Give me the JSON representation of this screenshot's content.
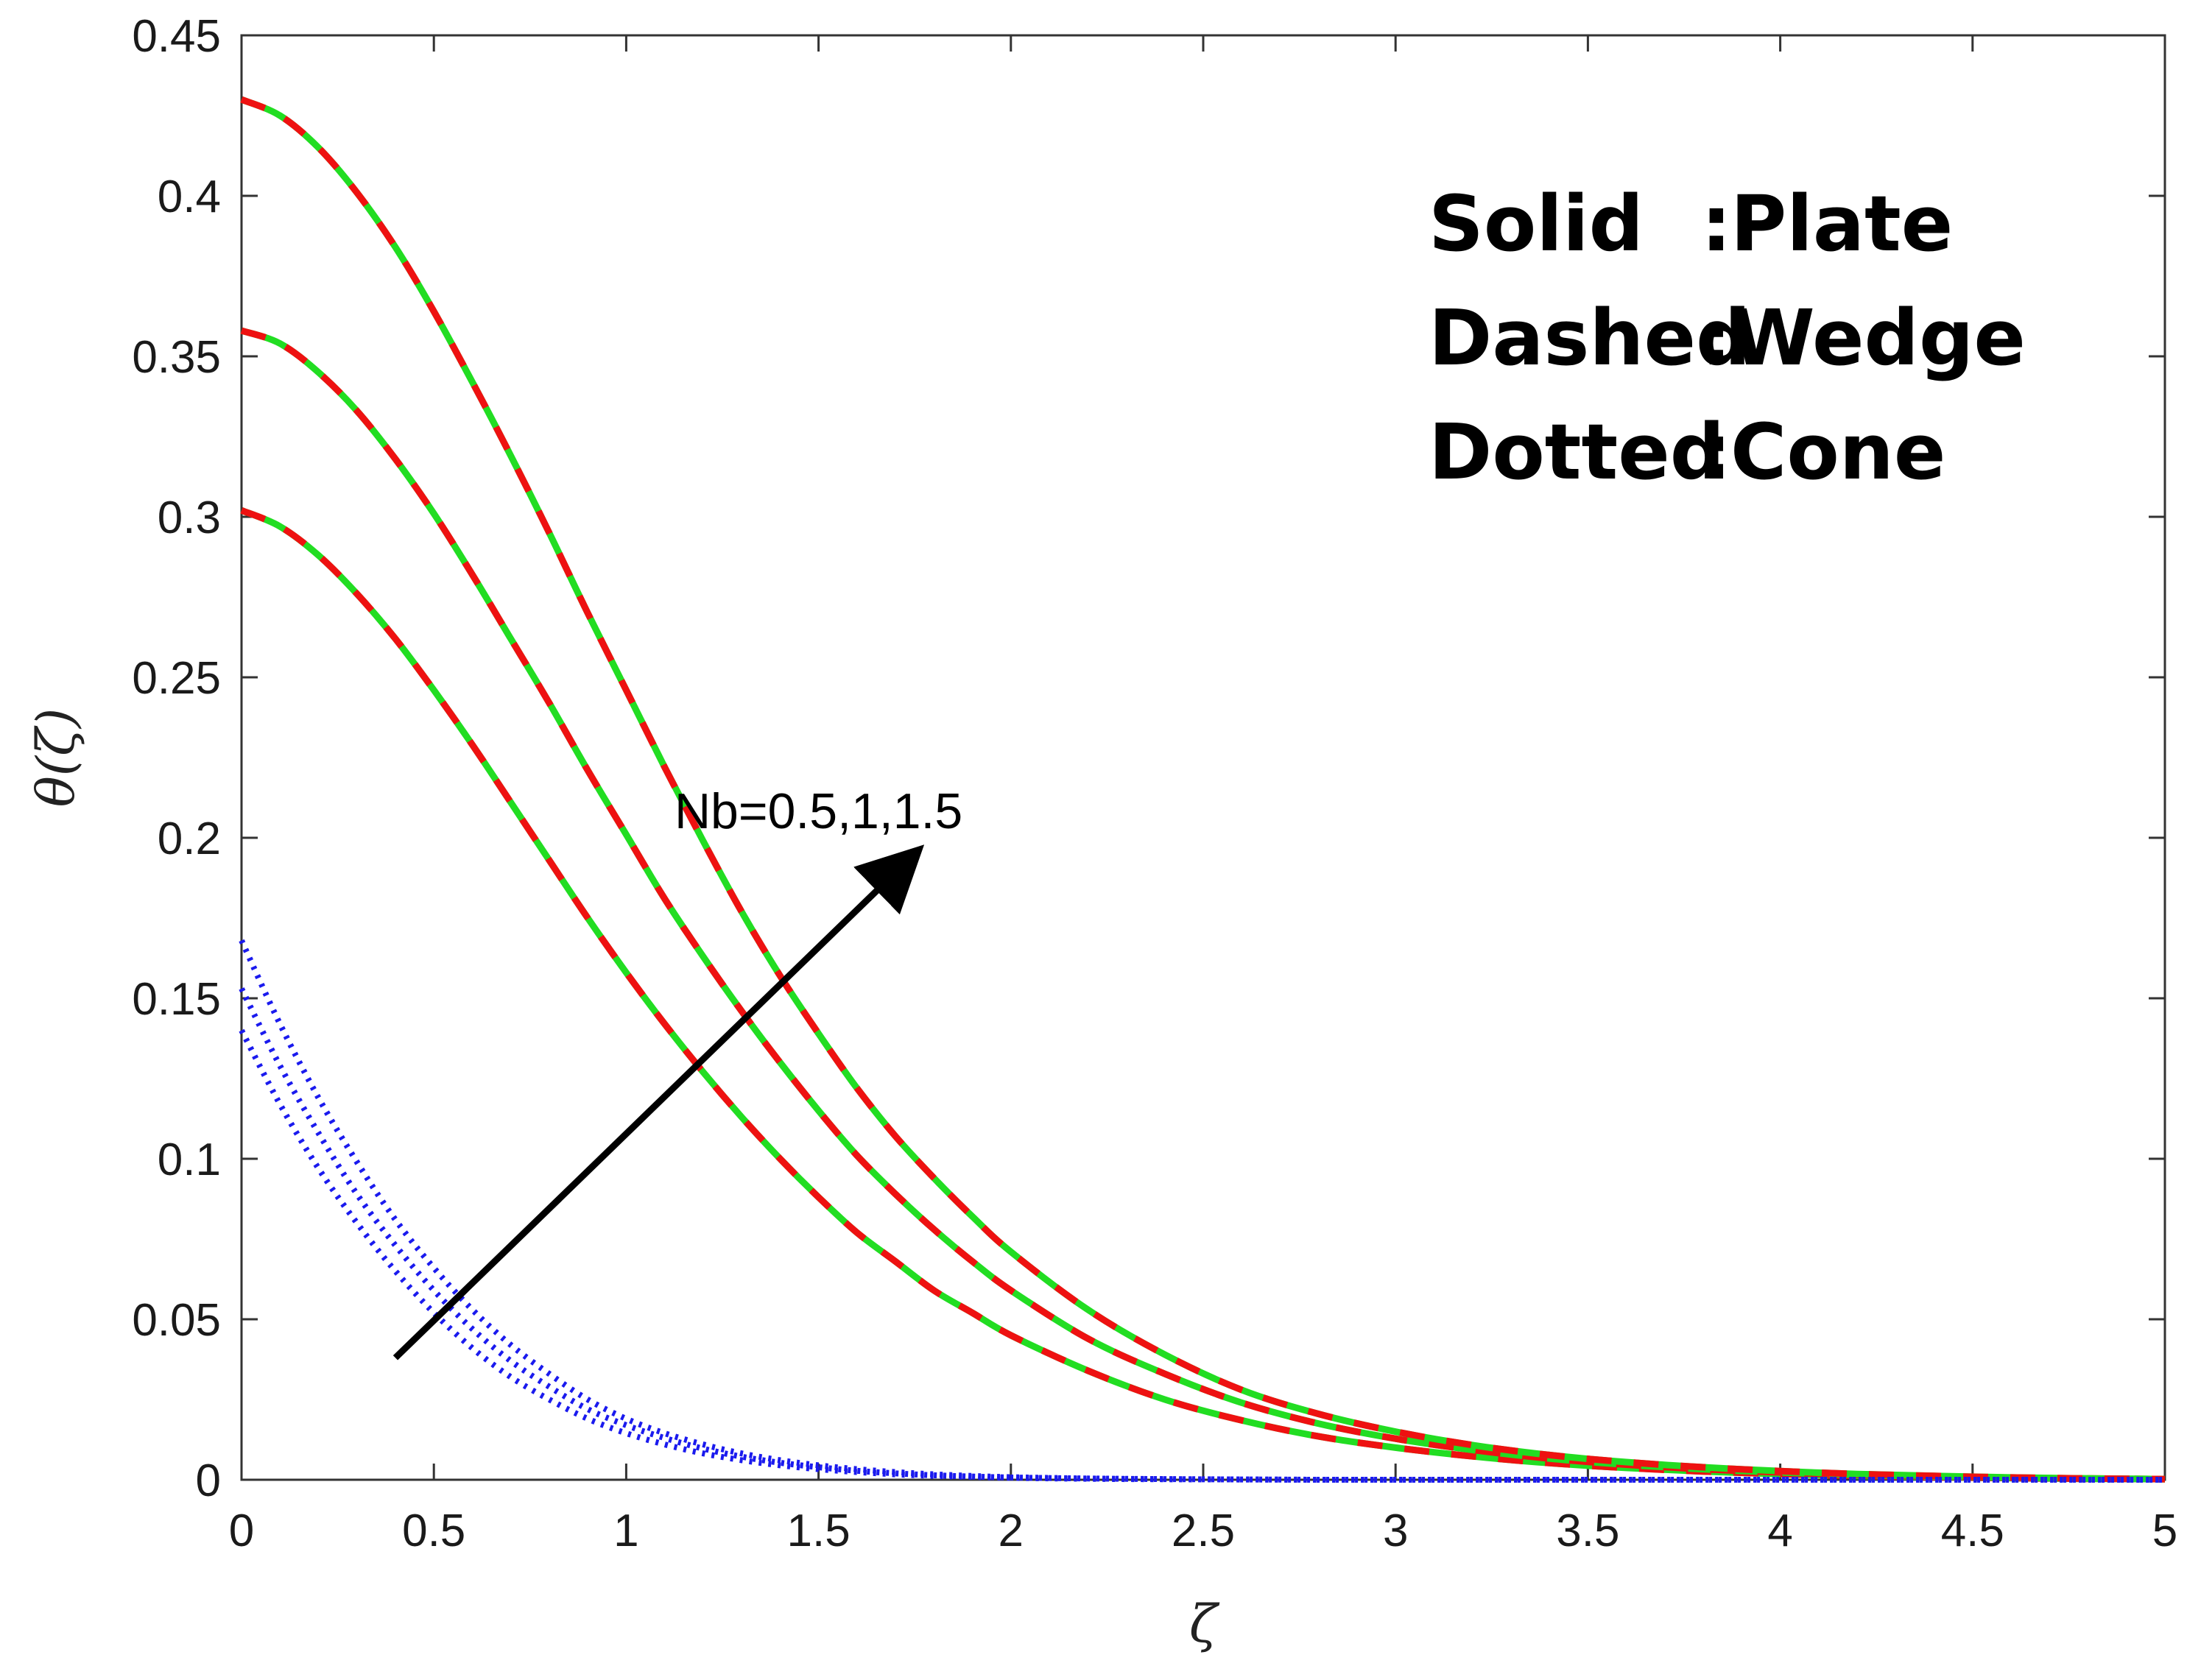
{
  "chart_data": {
    "type": "line",
    "xlabel": "ζ",
    "ylabel": "θ(ζ)",
    "xlim": [
      0,
      5
    ],
    "ylim": [
      0,
      0.45
    ],
    "xticks": [
      "0",
      "0.5",
      "1",
      "1.5",
      "2",
      "2.5",
      "3",
      "3.5",
      "4",
      "4.5",
      "5"
    ],
    "yticks": [
      "0",
      "0.05",
      "0.1",
      "0.15",
      "0.2",
      "0.25",
      "0.3",
      "0.35",
      "0.4",
      "0.45"
    ],
    "grid": false,
    "x": [
      0,
      0.1,
      0.2,
      0.3,
      0.4,
      0.5,
      0.6,
      0.7,
      0.8,
      0.9,
      1.0,
      1.1,
      1.2,
      1.3,
      1.4,
      1.5,
      1.6,
      1.7,
      1.8,
      1.9,
      2.0,
      2.2,
      2.4,
      2.6,
      2.8,
      3.0,
      3.2,
      3.4,
      3.6,
      3.8,
      4.0,
      4.2,
      4.4,
      4.6,
      4.8,
      5.0
    ],
    "series": [
      {
        "group": "plate-wedge",
        "values": [
          0.302,
          0.297,
          0.288,
          0.276,
          0.262,
          0.246,
          0.229,
          0.211,
          0.193,
          0.175,
          0.158,
          0.142,
          0.127,
          0.113,
          0.1,
          0.088,
          0.077,
          0.068,
          0.059,
          0.052,
          0.045,
          0.034,
          0.025,
          0.0185,
          0.0135,
          0.01,
          0.0073,
          0.0052,
          0.0037,
          0.0026,
          0.0018,
          0.0012,
          0.0008,
          0.0005,
          0.0003,
          0.0002
        ],
        "color": "#22dd22",
        "dash_color": "#ee1111"
      },
      {
        "group": "plate-wedge",
        "values": [
          0.358,
          0.354,
          0.345,
          0.333,
          0.318,
          0.301,
          0.282,
          0.262,
          0.242,
          0.221,
          0.201,
          0.181,
          0.163,
          0.146,
          0.13,
          0.115,
          0.101,
          0.089,
          0.078,
          0.068,
          0.059,
          0.044,
          0.033,
          0.024,
          0.0175,
          0.0128,
          0.0093,
          0.0066,
          0.0047,
          0.0033,
          0.0023,
          0.0015,
          0.001,
          0.0006,
          0.0004,
          0.0002
        ],
        "color": "#22dd22",
        "dash_color": "#ee1111"
      },
      {
        "group": "plate-wedge",
        "values": [
          0.43,
          0.425,
          0.415,
          0.401,
          0.384,
          0.364,
          0.342,
          0.319,
          0.295,
          0.27,
          0.246,
          0.222,
          0.199,
          0.177,
          0.157,
          0.139,
          0.122,
          0.107,
          0.094,
          0.082,
          0.071,
          0.053,
          0.039,
          0.028,
          0.0205,
          0.015,
          0.0108,
          0.0077,
          0.0055,
          0.0039,
          0.0027,
          0.0018,
          0.0012,
          0.0007,
          0.0004,
          0.0002
        ],
        "color": "#22dd22",
        "dash_color": "#ee1111"
      },
      {
        "group": "cone",
        "values": [
          0.14,
          0.117,
          0.097,
          0.08,
          0.065,
          0.052,
          0.041,
          0.032,
          0.025,
          0.019,
          0.0145,
          0.011,
          0.0082,
          0.0061,
          0.0045,
          0.0033,
          0.0024,
          0.0017,
          0.0012,
          0.0009,
          0.0006,
          0.0003,
          0.00015,
          0.0001,
          0,
          0,
          0,
          0,
          0,
          0,
          0,
          0,
          0,
          0,
          0,
          0
        ],
        "color": "#1a1aee"
      },
      {
        "group": "cone",
        "values": [
          0.153,
          0.129,
          0.108,
          0.089,
          0.073,
          0.059,
          0.047,
          0.037,
          0.029,
          0.022,
          0.017,
          0.013,
          0.0097,
          0.0072,
          0.0053,
          0.0039,
          0.0028,
          0.002,
          0.0014,
          0.001,
          0.0007,
          0.0004,
          0.0002,
          0.0001,
          0,
          0,
          0,
          0,
          0,
          0,
          0,
          0,
          0,
          0,
          0,
          0
        ],
        "color": "#1a1aee"
      },
      {
        "group": "cone",
        "values": [
          0.168,
          0.142,
          0.119,
          0.099,
          0.081,
          0.066,
          0.053,
          0.042,
          0.033,
          0.025,
          0.019,
          0.0145,
          0.011,
          0.0082,
          0.0061,
          0.0045,
          0.0033,
          0.0024,
          0.0017,
          0.0012,
          0.0008,
          0.0004,
          0.0002,
          0.0001,
          0,
          0,
          0,
          0,
          0,
          0,
          0,
          0,
          0,
          0,
          0,
          0
        ],
        "color": "#1a1aee"
      }
    ],
    "legend": {
      "position": "top-right",
      "rows": [
        {
          "style": "Solid",
          "sep": ":",
          "shape": "Plate"
        },
        {
          "style": "Dashed",
          "sep": ":",
          "shape": "Wedge"
        },
        {
          "style": "Dotted",
          "sep": ":",
          "shape": "Cone"
        }
      ]
    },
    "annotation": {
      "text": "Nb=0.5,1,1.5",
      "arrow_from": [
        0.4,
        0.038
      ],
      "arrow_to": [
        1.75,
        0.195
      ],
      "text_at": [
        1.5,
        0.203
      ]
    }
  }
}
